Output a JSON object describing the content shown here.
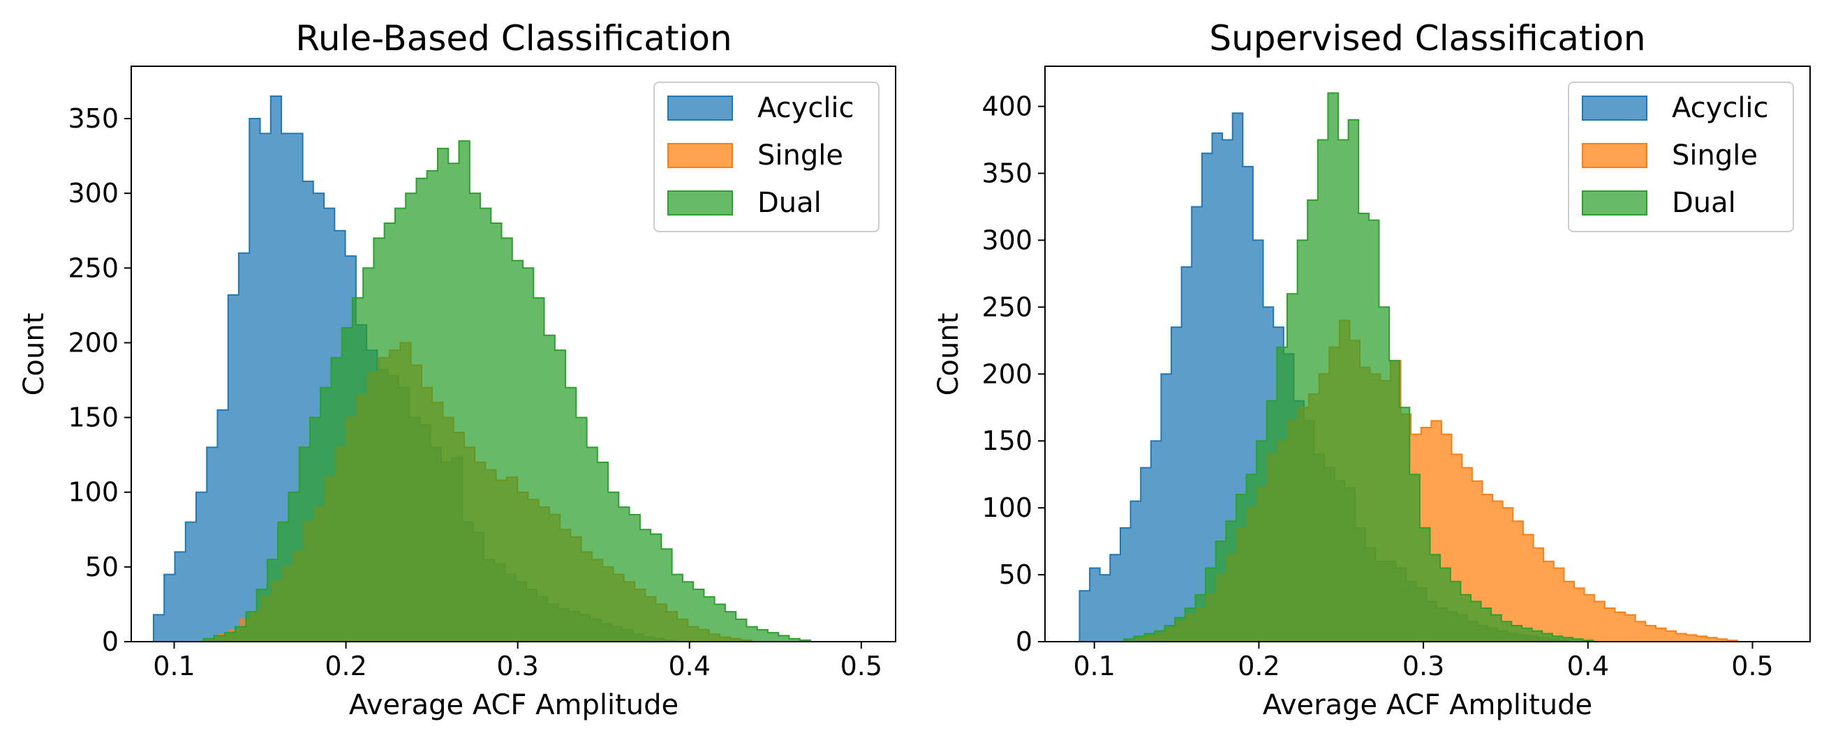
{
  "chart_data": [
    {
      "type": "histogram",
      "title": "Rule-Based Classification",
      "xlabel": "Average ACF Amplitude",
      "ylabel": "Count",
      "xlim": [
        0.075,
        0.52
      ],
      "ylim": [
        0,
        385
      ],
      "xticks": [
        0.1,
        0.2,
        0.3,
        0.4,
        0.5
      ],
      "xtick_labels": [
        "0.1",
        "0.2",
        "0.3",
        "0.4",
        "0.5"
      ],
      "yticks": [
        0,
        50,
        100,
        150,
        200,
        250,
        300,
        350
      ],
      "ytick_labels": [
        "0",
        "50",
        "100",
        "150",
        "200",
        "250",
        "300",
        "350"
      ],
      "legend_position": "top-right",
      "series": [
        {
          "name": "Acyclic",
          "color": "#1f77b4",
          "x_start": 0.088,
          "bin_width": 0.0062,
          "values": [
            18,
            45,
            60,
            80,
            100,
            130,
            155,
            232,
            260,
            350,
            340,
            365,
            340,
            340,
            308,
            300,
            290,
            275,
            258,
            212,
            195,
            182,
            178,
            170,
            150,
            145,
            130,
            120,
            123,
            80,
            73,
            55,
            52,
            45,
            40,
            35,
            30,
            25,
            22,
            20,
            18,
            15,
            12,
            10,
            8,
            5,
            3,
            2,
            1,
            0
          ]
        },
        {
          "name": "Single",
          "color": "#ff7f0e",
          "x_start": 0.12,
          "bin_width": 0.0062,
          "values": [
            2,
            5,
            8,
            15,
            20,
            30,
            40,
            50,
            60,
            80,
            90,
            110,
            130,
            150,
            165,
            180,
            190,
            195,
            200,
            185,
            170,
            160,
            150,
            140,
            130,
            120,
            115,
            108,
            110,
            100,
            95,
            90,
            85,
            75,
            70,
            60,
            55,
            50,
            45,
            40,
            35,
            30,
            25,
            20,
            15,
            10,
            8,
            5,
            3,
            2,
            1,
            0
          ]
        },
        {
          "name": "Dual",
          "color": "#2ca02c",
          "x_start": 0.117,
          "bin_width": 0.0062,
          "values": [
            2,
            4,
            6,
            10,
            20,
            35,
            55,
            80,
            100,
            130,
            150,
            170,
            190,
            210,
            230,
            250,
            270,
            280,
            290,
            300,
            310,
            315,
            330,
            320,
            335,
            300,
            290,
            280,
            270,
            255,
            250,
            230,
            205,
            195,
            170,
            150,
            130,
            120,
            100,
            90,
            85,
            75,
            72,
            62,
            45,
            40,
            35,
            30,
            25,
            20,
            15,
            10,
            8,
            6,
            4,
            2,
            1,
            0
          ]
        }
      ]
    },
    {
      "type": "histogram",
      "title": "Supervised Classification",
      "xlabel": "Average ACF Amplitude",
      "ylabel": "Count",
      "xlim": [
        0.07,
        0.535
      ],
      "ylim": [
        0,
        430
      ],
      "xticks": [
        0.1,
        0.2,
        0.3,
        0.4,
        0.5
      ],
      "xtick_labels": [
        "0.1",
        "0.2",
        "0.3",
        "0.4",
        "0.5"
      ],
      "yticks": [
        0,
        50,
        100,
        150,
        200,
        250,
        300,
        350,
        400
      ],
      "ytick_labels": [
        "0",
        "50",
        "100",
        "150",
        "200",
        "250",
        "300",
        "350",
        "400"
      ],
      "legend_position": "top-right",
      "series": [
        {
          "name": "Acyclic",
          "color": "#1f77b4",
          "x_start": 0.091,
          "bin_width": 0.0062,
          "values": [
            38,
            55,
            50,
            65,
            85,
            105,
            130,
            150,
            200,
            235,
            280,
            325,
            365,
            380,
            375,
            395,
            355,
            300,
            250,
            235,
            215,
            180,
            165,
            140,
            130,
            120,
            115,
            85,
            70,
            60,
            60,
            55,
            45,
            40,
            30,
            25,
            22,
            20,
            15,
            12,
            10,
            8,
            6,
            5,
            4,
            3,
            2,
            1,
            0
          ]
        },
        {
          "name": "Single",
          "color": "#ff7f0e",
          "x_start": 0.125,
          "bin_width": 0.0062,
          "values": [
            2,
            4,
            6,
            10,
            15,
            20,
            25,
            35,
            50,
            65,
            85,
            100,
            115,
            140,
            150,
            165,
            175,
            185,
            200,
            220,
            240,
            225,
            205,
            200,
            195,
            210,
            170,
            155,
            160,
            165,
            155,
            140,
            130,
            120,
            110,
            105,
            100,
            90,
            80,
            70,
            60,
            55,
            45,
            40,
            35,
            30,
            25,
            22,
            20,
            15,
            12,
            10,
            8,
            6,
            5,
            4,
            3,
            2,
            1
          ]
        },
        {
          "name": "Dual",
          "color": "#2ca02c",
          "x_start": 0.118,
          "bin_width": 0.0062,
          "values": [
            2,
            4,
            6,
            8,
            12,
            18,
            25,
            35,
            55,
            75,
            90,
            110,
            125,
            150,
            180,
            220,
            260,
            300,
            330,
            375,
            410,
            375,
            390,
            320,
            315,
            250,
            210,
            175,
            125,
            85,
            65,
            55,
            45,
            35,
            30,
            25,
            20,
            15,
            12,
            10,
            8,
            6,
            4,
            3,
            2,
            1,
            0
          ]
        }
      ]
    }
  ],
  "panels": [
    {
      "title": "Rule-Based Classification",
      "xlabel": "Average ACF Amplitude",
      "ylabel": "Count",
      "legend": [
        "Acyclic",
        "Single",
        "Dual"
      ]
    },
    {
      "title": "Supervised Classification",
      "xlabel": "Average ACF Amplitude",
      "ylabel": "Count",
      "legend": [
        "Acyclic",
        "Single",
        "Dual"
      ]
    }
  ]
}
